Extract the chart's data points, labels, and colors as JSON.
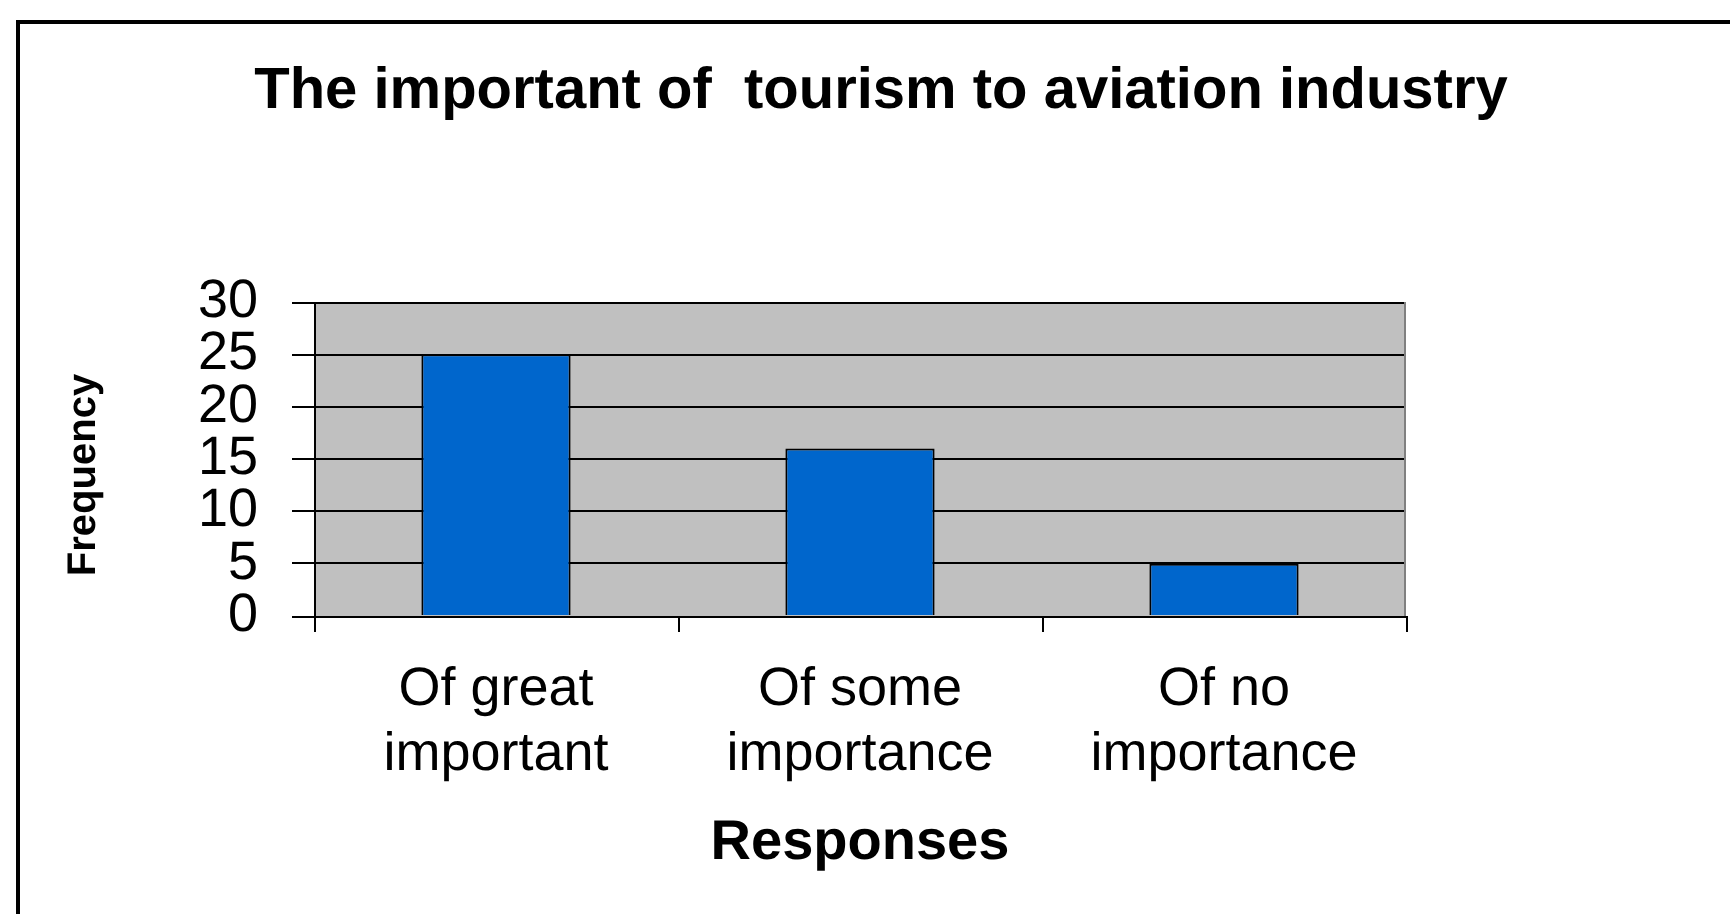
{
  "chart_data": {
    "type": "bar",
    "title": "The important of  tourism to aviation industry",
    "xlabel": "Responses",
    "ylabel": "Frequency",
    "categories": [
      "Of great important",
      "Of some importance",
      "Of no importance"
    ],
    "values": [
      25,
      16,
      5
    ],
    "color": "#0066cc",
    "ylim": [
      0,
      30
    ],
    "yticks": [
      0,
      5,
      10,
      15,
      20,
      25,
      30
    ],
    "grid": "y"
  }
}
